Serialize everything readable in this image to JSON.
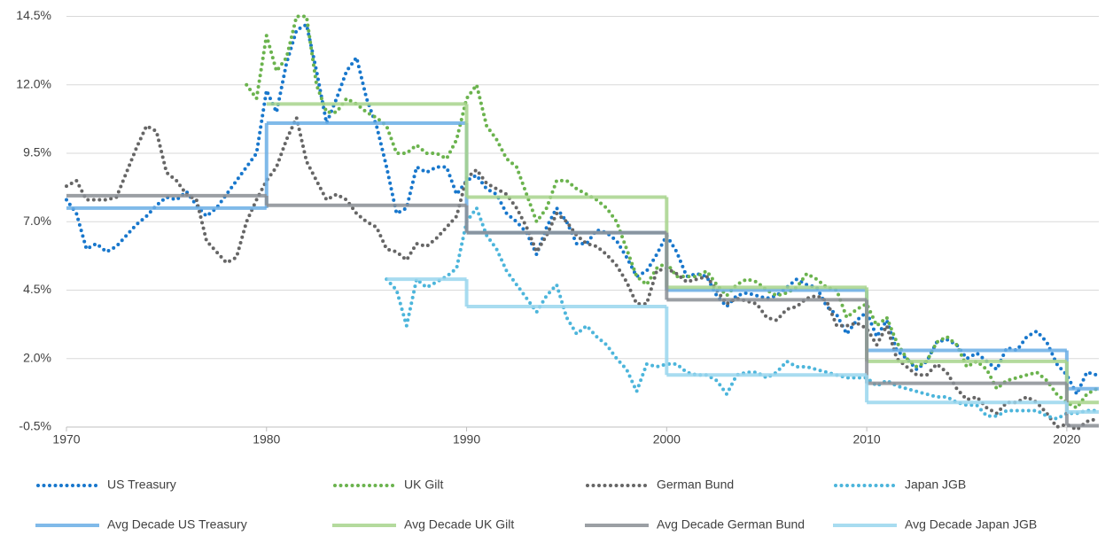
{
  "chart_data": {
    "type": "line",
    "xlim": [
      1970,
      2021.6
    ],
    "xticks": [
      1970,
      1980,
      1990,
      2000,
      2010,
      2020
    ],
    "ylim": [
      -0.5,
      15.1
    ],
    "yticks": [
      {
        "value": -0.5,
        "label": "-0.5%"
      },
      {
        "value": 2,
        "label": "2.0%"
      },
      {
        "value": 4.5,
        "label": "4.5%"
      },
      {
        "value": 7,
        "label": "7.0%"
      },
      {
        "value": 9.5,
        "label": "9.5%"
      },
      {
        "value": 12,
        "label": "12.0%"
      },
      {
        "value": 14.5,
        "label": "14.5%"
      }
    ],
    "grid": true,
    "legend": "bottom",
    "x": [
      1970,
      1970.5,
      1971,
      1971.5,
      1972,
      1972.5,
      1973,
      1973.5,
      1974,
      1974.5,
      1975,
      1975.5,
      1976,
      1976.5,
      1977,
      1977.5,
      1978,
      1978.5,
      1979,
      1979.5,
      1980,
      1980.5,
      1981,
      1981.5,
      1982,
      1982.5,
      1983,
      1983.5,
      1984,
      1984.5,
      1985,
      1985.5,
      1986,
      1986.5,
      1987,
      1987.5,
      1988,
      1988.5,
      1989,
      1989.5,
      1990,
      1990.5,
      1991,
      1991.5,
      1992,
      1992.5,
      1993,
      1993.5,
      1994,
      1994.5,
      1995,
      1995.5,
      1996,
      1996.5,
      1997,
      1997.5,
      1998,
      1998.5,
      1999,
      1999.5,
      2000,
      2000.5,
      2001,
      2001.5,
      2002,
      2002.5,
      2003,
      2003.5,
      2004,
      2004.5,
      2005,
      2005.5,
      2006,
      2006.5,
      2007,
      2007.5,
      2008,
      2008.5,
      2009,
      2009.5,
      2010,
      2010.5,
      2011,
      2011.5,
      2012,
      2012.5,
      2013,
      2013.5,
      2014,
      2014.5,
      2015,
      2015.5,
      2016,
      2016.5,
      2017,
      2017.5,
      2018,
      2018.5,
      2019,
      2019.5,
      2020,
      2020.5,
      2021,
      2021.5
    ],
    "series": [
      {
        "name": "US Treasury",
        "style": "dotted",
        "color": "#1877cc",
        "values": [
          7.8,
          7.3,
          6.0,
          6.2,
          5.9,
          6.1,
          6.5,
          6.9,
          7.2,
          7.6,
          7.9,
          7.8,
          8.1,
          7.6,
          7.2,
          7.5,
          8.0,
          8.5,
          9.0,
          9.5,
          11.8,
          11.0,
          12.8,
          14.0,
          14.2,
          12.5,
          10.6,
          11.5,
          12.5,
          13.0,
          11.5,
          10.5,
          9.0,
          7.3,
          7.5,
          9.0,
          8.8,
          9.0,
          9.0,
          8.0,
          8.5,
          8.7,
          8.2,
          8.0,
          7.3,
          7.0,
          6.6,
          5.8,
          6.8,
          7.5,
          7.0,
          6.2,
          6.2,
          6.7,
          6.6,
          6.3,
          5.7,
          5.0,
          5.2,
          5.8,
          6.5,
          5.9,
          5.0,
          5.1,
          5.0,
          4.3,
          3.9,
          4.3,
          4.4,
          4.3,
          4.2,
          4.3,
          4.6,
          4.9,
          4.7,
          4.6,
          3.9,
          3.6,
          2.9,
          3.4,
          3.7,
          2.8,
          3.4,
          2.3,
          2.0,
          1.6,
          1.9,
          2.6,
          2.7,
          2.5,
          2.0,
          2.2,
          1.9,
          1.6,
          2.4,
          2.3,
          2.8,
          3.0,
          2.6,
          1.8,
          1.4,
          0.7,
          1.5,
          1.4
        ]
      },
      {
        "name": "UK Gilt",
        "style": "dotted",
        "color": "#6bb34e",
        "values": [
          null,
          null,
          null,
          null,
          null,
          null,
          null,
          null,
          null,
          null,
          null,
          null,
          null,
          null,
          null,
          null,
          null,
          null,
          12.0,
          11.5,
          13.8,
          12.5,
          13.0,
          14.5,
          14.5,
          12.0,
          11.0,
          11.0,
          11.5,
          11.3,
          11.0,
          10.8,
          10.5,
          9.5,
          9.5,
          9.8,
          9.5,
          9.5,
          9.3,
          10.0,
          11.5,
          12.0,
          10.5,
          10.0,
          9.3,
          9.0,
          8.0,
          7.0,
          7.5,
          8.5,
          8.5,
          8.2,
          8.0,
          7.8,
          7.5,
          7.0,
          6.0,
          5.0,
          4.7,
          5.3,
          5.5,
          5.0,
          5.0,
          5.0,
          5.2,
          4.7,
          4.3,
          4.7,
          4.9,
          4.8,
          4.5,
          4.3,
          4.4,
          4.6,
          5.1,
          4.9,
          4.6,
          4.5,
          3.5,
          3.8,
          4.0,
          3.2,
          3.5,
          2.6,
          2.0,
          1.7,
          1.9,
          2.6,
          2.8,
          2.5,
          1.7,
          1.9,
          1.6,
          0.9,
          1.2,
          1.3,
          1.4,
          1.5,
          1.2,
          0.7,
          0.4,
          0.2,
          0.7,
          0.9
        ]
      },
      {
        "name": "German Bund",
        "style": "dotted",
        "color": "#666666",
        "values": [
          8.3,
          8.5,
          7.8,
          7.8,
          7.8,
          7.9,
          8.8,
          9.7,
          10.5,
          10.3,
          8.8,
          8.5,
          8.0,
          7.8,
          6.3,
          5.9,
          5.5,
          5.7,
          7.0,
          7.8,
          8.5,
          9.0,
          10.0,
          10.8,
          9.2,
          8.5,
          7.8,
          8.0,
          7.8,
          7.3,
          7.0,
          6.8,
          6.0,
          5.9,
          5.6,
          6.2,
          6.1,
          6.4,
          6.8,
          7.2,
          8.6,
          8.9,
          8.4,
          8.2,
          8.0,
          7.5,
          6.8,
          5.9,
          6.5,
          7.3,
          7.0,
          6.5,
          6.2,
          6.1,
          5.8,
          5.4,
          4.8,
          4.0,
          4.0,
          5.2,
          5.3,
          5.1,
          4.8,
          4.9,
          5.0,
          4.5,
          4.0,
          4.2,
          4.1,
          4.0,
          3.5,
          3.4,
          3.8,
          3.9,
          4.2,
          4.3,
          4.1,
          3.2,
          3.2,
          3.3,
          3.1,
          2.5,
          3.2,
          2.0,
          1.7,
          1.4,
          1.4,
          1.8,
          1.5,
          0.9,
          0.5,
          0.6,
          0.2,
          0.0,
          0.4,
          0.4,
          0.6,
          0.4,
          0.0,
          -0.5,
          -0.4,
          -0.6,
          -0.3,
          -0.2
        ]
      },
      {
        "name": "Japan JGB",
        "style": "dotted",
        "color": "#4cb5db",
        "values": [
          null,
          null,
          null,
          null,
          null,
          null,
          null,
          null,
          null,
          null,
          null,
          null,
          null,
          null,
          null,
          null,
          null,
          null,
          null,
          null,
          null,
          null,
          null,
          null,
          null,
          null,
          null,
          null,
          null,
          null,
          null,
          null,
          4.9,
          4.5,
          3.2,
          4.9,
          4.6,
          4.8,
          5.0,
          5.3,
          7.0,
          7.5,
          6.5,
          6.0,
          5.2,
          4.7,
          4.2,
          3.7,
          4.3,
          4.7,
          3.5,
          2.9,
          3.2,
          2.8,
          2.5,
          2.0,
          1.6,
          0.8,
          1.8,
          1.7,
          1.8,
          1.8,
          1.5,
          1.4,
          1.4,
          1.2,
          0.7,
          1.4,
          1.5,
          1.5,
          1.3,
          1.5,
          1.9,
          1.7,
          1.7,
          1.6,
          1.5,
          1.4,
          1.3,
          1.3,
          1.3,
          1.0,
          1.2,
          1.0,
          0.9,
          0.8,
          0.7,
          0.6,
          0.6,
          0.4,
          0.3,
          0.3,
          -0.1,
          -0.1,
          0.1,
          0.1,
          0.1,
          0.1,
          -0.1,
          -0.2,
          0.0,
          0.0,
          0.1,
          0.1
        ]
      },
      {
        "name": "Avg Decade US Treasury",
        "style": "step",
        "color": "#6aaee6",
        "x": [
          1970,
          1980,
          1990,
          2000,
          2010,
          2020
        ],
        "values": [
          7.5,
          10.6,
          6.6,
          4.5,
          2.3,
          0.9
        ]
      },
      {
        "name": "Avg Decade UK Gilt",
        "style": "step",
        "color": "#a8d48c",
        "x": [
          1980,
          1990,
          2000,
          2010,
          2020
        ],
        "values": [
          11.3,
          7.9,
          4.6,
          1.9,
          0.4
        ]
      },
      {
        "name": "Avg Decade German Bund",
        "style": "step",
        "color": "#8a8f95",
        "x": [
          1970,
          1980,
          1990,
          2000,
          2010,
          2020
        ],
        "values": [
          7.95,
          7.6,
          6.6,
          4.15,
          1.1,
          -0.45
        ]
      },
      {
        "name": "Avg Decade Japan JGB",
        "style": "step",
        "color": "#9ad6ee",
        "x": [
          1986,
          1990,
          2000,
          2010,
          2020
        ],
        "values": [
          4.9,
          3.9,
          1.4,
          0.4,
          0.05
        ]
      }
    ]
  }
}
